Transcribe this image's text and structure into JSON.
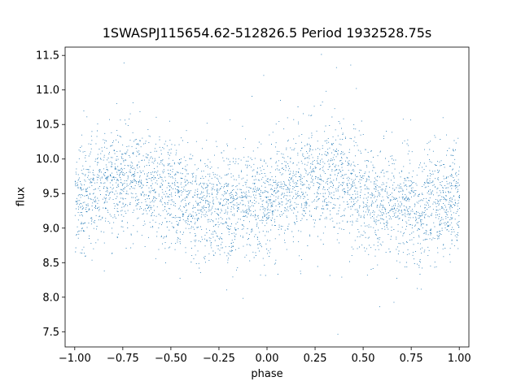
{
  "chart_data": {
    "type": "scatter",
    "title": "1SWASPJ115654.62-512826.5 Period 1932528.75s",
    "xlabel": "phase",
    "ylabel": "flux",
    "xlim": [
      -1.05,
      1.05
    ],
    "ylim": [
      7.28,
      11.62
    ],
    "x_ticks": [
      "−1.00",
      "−0.75",
      "−0.50",
      "−0.25",
      "0.00",
      "0.25",
      "0.50",
      "0.75",
      "1.00"
    ],
    "x_tick_values": [
      -1.0,
      -0.75,
      -0.5,
      -0.25,
      0.0,
      0.25,
      0.5,
      0.75,
      1.0
    ],
    "y_ticks": [
      "7.5",
      "8.0",
      "8.5",
      "9.0",
      "9.5",
      "10.0",
      "10.5",
      "11.0",
      "11.5"
    ],
    "y_tick_values": [
      7.5,
      8.0,
      8.5,
      9.0,
      9.5,
      10.0,
      10.5,
      11.0,
      11.5
    ],
    "grid": false,
    "marker_color": "#1f77b4",
    "series": [
      {
        "phase_range": [
          -1.0,
          1.0
        ],
        "approx_point_count": 9000,
        "mean_flux_by_phase": [
          {
            "x": -1.0,
            "y": 9.4
          },
          {
            "x": -0.85,
            "y": 9.6
          },
          {
            "x": -0.7,
            "y": 9.75
          },
          {
            "x": -0.55,
            "y": 9.6
          },
          {
            "x": -0.45,
            "y": 9.4
          },
          {
            "x": -0.3,
            "y": 9.3
          },
          {
            "x": -0.15,
            "y": 9.3
          },
          {
            "x": 0.0,
            "y": 9.4
          },
          {
            "x": 0.15,
            "y": 9.6
          },
          {
            "x": 0.3,
            "y": 9.75
          },
          {
            "x": 0.45,
            "y": 9.6
          },
          {
            "x": 0.55,
            "y": 9.4
          },
          {
            "x": 0.7,
            "y": 9.3
          },
          {
            "x": 0.85,
            "y": 9.3
          },
          {
            "x": 1.0,
            "y": 9.4
          }
        ],
        "flux_spread_sd": 0.38
      }
    ]
  }
}
